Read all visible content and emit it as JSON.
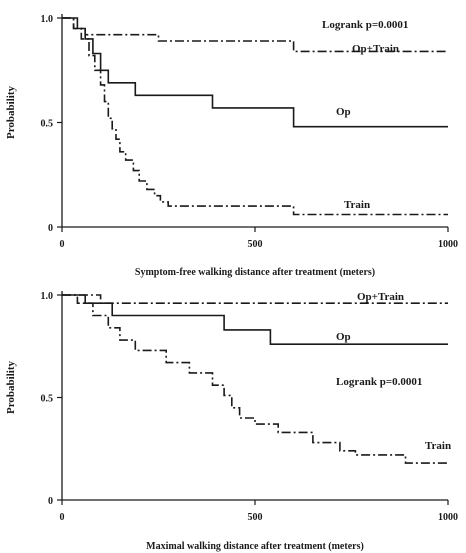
{
  "chart_data": [
    {
      "type": "line",
      "title": "",
      "xlabel": "Symptom-free walking distance after treatment (meters)",
      "ylabel": "Probability",
      "xlim": [
        0,
        1000
      ],
      "ylim": [
        0,
        1.0
      ],
      "x_ticks": [
        "0",
        "500",
        "1000"
      ],
      "y_ticks": [
        "0",
        "0.5",
        "1.0"
      ],
      "grid": false,
      "annotation": "Logrank  p=0.0001",
      "series": [
        {
          "name": "Op+Train",
          "style": "dash-dot",
          "points": [
            [
              0,
              1.0
            ],
            [
              30,
              1.0
            ],
            [
              30,
              0.95
            ],
            [
              60,
              0.95
            ],
            [
              60,
              0.92
            ],
            [
              250,
              0.92
            ],
            [
              250,
              0.89
            ],
            [
              600,
              0.89
            ],
            [
              600,
              0.84
            ],
            [
              1000,
              0.84
            ]
          ]
        },
        {
          "name": "Op",
          "style": "solid",
          "points": [
            [
              0,
              1.0
            ],
            [
              40,
              1.0
            ],
            [
              40,
              0.95
            ],
            [
              60,
              0.95
            ],
            [
              60,
              0.9
            ],
            [
              80,
              0.9
            ],
            [
              80,
              0.83
            ],
            [
              100,
              0.83
            ],
            [
              100,
              0.75
            ],
            [
              120,
              0.75
            ],
            [
              120,
              0.69
            ],
            [
              190,
              0.69
            ],
            [
              190,
              0.63
            ],
            [
              390,
              0.63
            ],
            [
              390,
              0.57
            ],
            [
              600,
              0.57
            ],
            [
              600,
              0.48
            ],
            [
              1000,
              0.48
            ]
          ]
        },
        {
          "name": "Train",
          "style": "dash-dot",
          "points": [
            [
              0,
              1.0
            ],
            [
              30,
              1.0
            ],
            [
              30,
              0.95
            ],
            [
              50,
              0.95
            ],
            [
              50,
              0.9
            ],
            [
              70,
              0.9
            ],
            [
              70,
              0.82
            ],
            [
              85,
              0.82
            ],
            [
              85,
              0.75
            ],
            [
              100,
              0.75
            ],
            [
              100,
              0.68
            ],
            [
              110,
              0.68
            ],
            [
              110,
              0.6
            ],
            [
              120,
              0.6
            ],
            [
              120,
              0.52
            ],
            [
              130,
              0.52
            ],
            [
              130,
              0.47
            ],
            [
              140,
              0.47
            ],
            [
              140,
              0.42
            ],
            [
              150,
              0.42
            ],
            [
              150,
              0.36
            ],
            [
              165,
              0.36
            ],
            [
              165,
              0.32
            ],
            [
              185,
              0.32
            ],
            [
              185,
              0.27
            ],
            [
              200,
              0.27
            ],
            [
              200,
              0.22
            ],
            [
              220,
              0.22
            ],
            [
              220,
              0.18
            ],
            [
              240,
              0.18
            ],
            [
              240,
              0.15
            ],
            [
              255,
              0.15
            ],
            [
              255,
              0.12
            ],
            [
              275,
              0.12
            ],
            [
              275,
              0.1
            ],
            [
              600,
              0.1
            ],
            [
              600,
              0.06
            ],
            [
              1000,
              0.06
            ]
          ]
        }
      ]
    },
    {
      "type": "line",
      "title": "",
      "xlabel": "Maximal walking distance after treatment (meters)",
      "ylabel": "Probability",
      "xlim": [
        0,
        1000
      ],
      "ylim": [
        0,
        1.0
      ],
      "x_ticks": [
        "0",
        "500",
        "1000"
      ],
      "y_ticks": [
        "0",
        "0.5",
        "1.0"
      ],
      "grid": false,
      "annotation": "Logrank  p=0.0001",
      "series": [
        {
          "name": "Op+Train",
          "style": "dash-dot",
          "points": [
            [
              0,
              1.0
            ],
            [
              100,
              1.0
            ],
            [
              100,
              0.96
            ],
            [
              1000,
              0.96
            ]
          ]
        },
        {
          "name": "Op",
          "style": "solid",
          "points": [
            [
              0,
              1.0
            ],
            [
              60,
              1.0
            ],
            [
              60,
              0.96
            ],
            [
              130,
              0.96
            ],
            [
              130,
              0.9
            ],
            [
              420,
              0.9
            ],
            [
              420,
              0.83
            ],
            [
              540,
              0.83
            ],
            [
              540,
              0.76
            ],
            [
              1000,
              0.76
            ]
          ]
        },
        {
          "name": "Train",
          "style": "dash-dot",
          "points": [
            [
              0,
              1.0
            ],
            [
              40,
              1.0
            ],
            [
              40,
              0.96
            ],
            [
              80,
              0.96
            ],
            [
              80,
              0.9
            ],
            [
              120,
              0.9
            ],
            [
              120,
              0.84
            ],
            [
              150,
              0.84
            ],
            [
              150,
              0.78
            ],
            [
              190,
              0.78
            ],
            [
              190,
              0.73
            ],
            [
              270,
              0.73
            ],
            [
              270,
              0.67
            ],
            [
              330,
              0.67
            ],
            [
              330,
              0.62
            ],
            [
              390,
              0.62
            ],
            [
              390,
              0.56
            ],
            [
              420,
              0.56
            ],
            [
              420,
              0.51
            ],
            [
              440,
              0.51
            ],
            [
              440,
              0.45
            ],
            [
              460,
              0.45
            ],
            [
              460,
              0.4
            ],
            [
              500,
              0.4
            ],
            [
              500,
              0.37
            ],
            [
              560,
              0.37
            ],
            [
              560,
              0.33
            ],
            [
              650,
              0.33
            ],
            [
              650,
              0.28
            ],
            [
              720,
              0.28
            ],
            [
              720,
              0.24
            ],
            [
              760,
              0.24
            ],
            [
              760,
              0.22
            ],
            [
              890,
              0.22
            ],
            [
              890,
              0.18
            ],
            [
              1000,
              0.18
            ]
          ]
        }
      ]
    }
  ]
}
